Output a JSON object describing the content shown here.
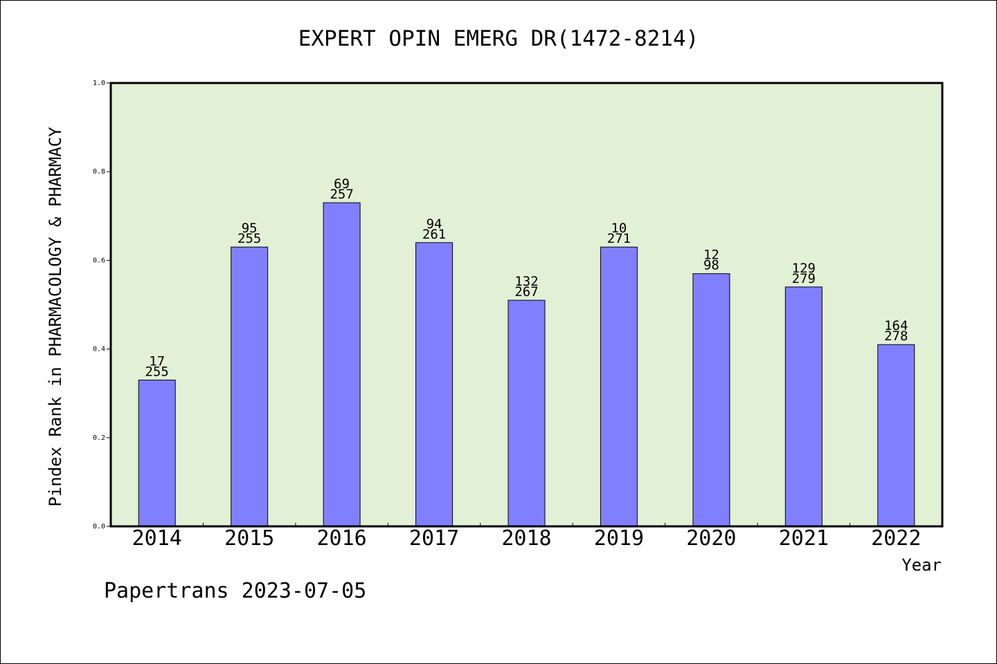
{
  "chart_data": {
    "type": "bar",
    "title": "EXPERT OPIN EMERG DR(1472-8214)",
    "xlabel": "Year",
    "ylabel": "Pindex Rank in PHARMACOLOGY & PHARMACY",
    "ylim": [
      0,
      1.0
    ],
    "yticks": [
      "0.0",
      "0.2",
      "0.4",
      "0.6",
      "0.8",
      "1.0"
    ],
    "grid": false,
    "categories": [
      "2014",
      "2015",
      "2016",
      "2017",
      "2018",
      "2019",
      "2020",
      "2021",
      "2022"
    ],
    "values": [
      0.33,
      0.63,
      0.73,
      0.64,
      0.51,
      0.63,
      0.57,
      0.54,
      0.41
    ],
    "rank_labels": [
      "17",
      "95",
      "69",
      "94",
      "132",
      "10",
      "12",
      "129",
      "164"
    ],
    "total_labels": [
      "255",
      "255",
      "257",
      "261",
      "267",
      "271",
      "98",
      "279",
      "278"
    ],
    "bar_color": "#8080ff",
    "plot_background": "#e2f0d6"
  },
  "footer": "Papertrans 2023-07-05"
}
